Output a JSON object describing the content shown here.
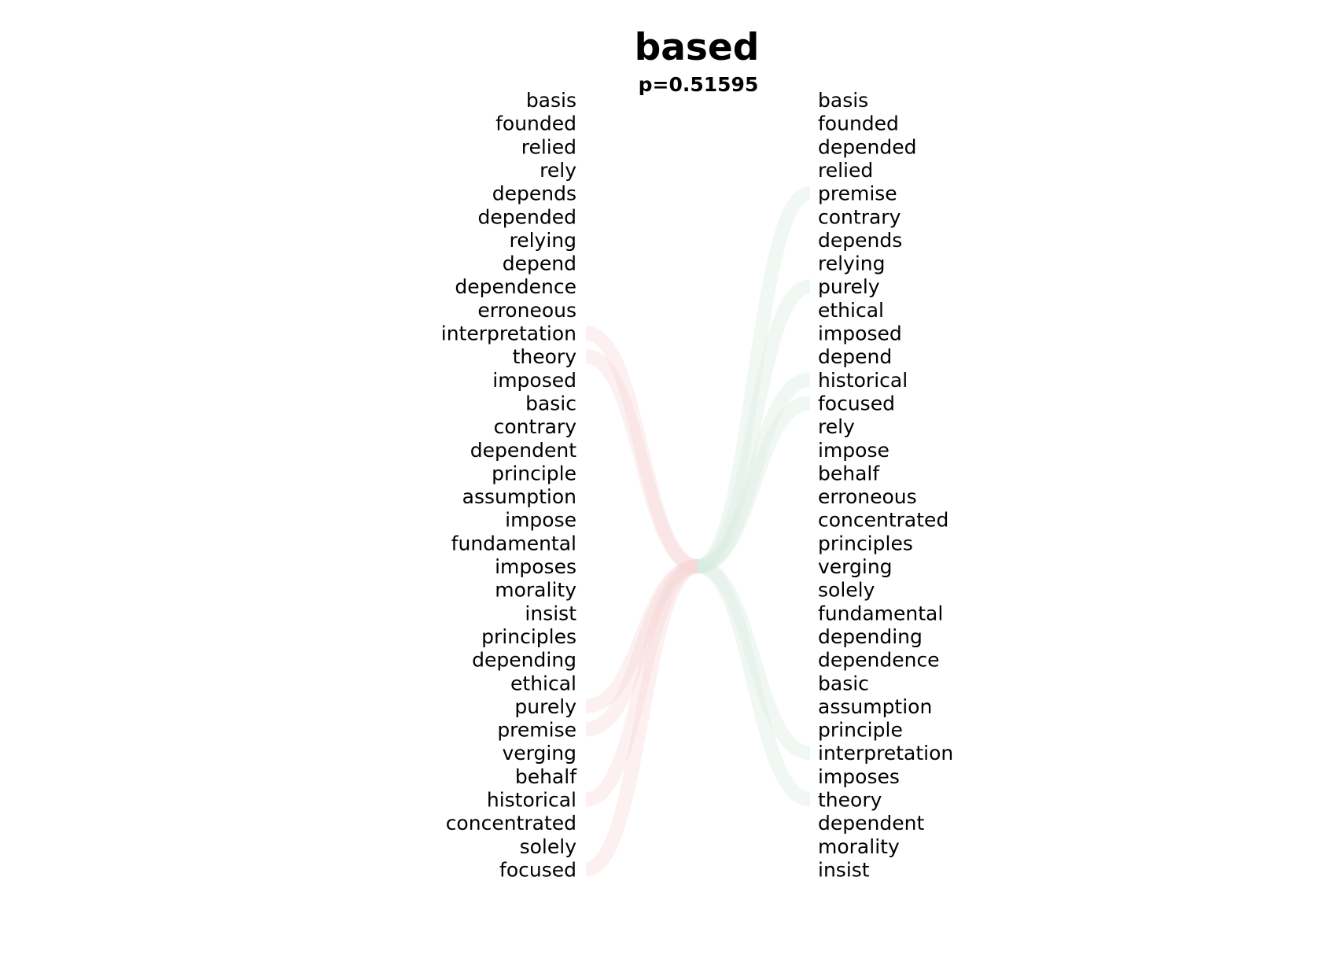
{
  "title": "based",
  "subtitle": "p=0.51595",
  "colors": {
    "left_link": "#f7d4d4",
    "right_link": "#d6ece0",
    "text": "#000000"
  },
  "left_words": [
    "basis",
    "founded",
    "relied",
    "rely",
    "depends",
    "depended",
    "relying",
    "depend",
    "dependence",
    "erroneous",
    "interpretation",
    "theory",
    "imposed",
    "basic",
    "contrary",
    "dependent",
    "principle",
    "assumption",
    "impose",
    "fundamental",
    "imposes",
    "morality",
    "insist",
    "principles",
    "depending",
    "ethical",
    "purely",
    "premise",
    "verging",
    "behalf",
    "historical",
    "concentrated",
    "solely",
    "focused"
  ],
  "right_words": [
    "basis",
    "founded",
    "depended",
    "relied",
    "premise",
    "contrary",
    "depends",
    "relying",
    "purely",
    "ethical",
    "imposed",
    "depend",
    "historical",
    "focused",
    "rely",
    "impose",
    "behalf",
    "erroneous",
    "concentrated",
    "principles",
    "verging",
    "solely",
    "fundamental",
    "depending",
    "dependence",
    "basic",
    "assumption",
    "principle",
    "interpretation",
    "imposes",
    "theory",
    "dependent",
    "morality",
    "insist"
  ],
  "left_links": [
    {
      "from": "interpretation",
      "to_row": 20
    },
    {
      "from": "theory",
      "to_row": 20
    },
    {
      "from": "purely",
      "to_row": 20
    },
    {
      "from": "premise",
      "to_row": 20
    },
    {
      "from": "historical",
      "to_row": 20
    },
    {
      "from": "focused",
      "to_row": 20
    }
  ],
  "right_links": [
    {
      "from": "premise",
      "to_row": 20
    },
    {
      "from": "purely",
      "to_row": 20
    },
    {
      "from": "historical",
      "to_row": 20
    },
    {
      "from": "focused",
      "to_row": 20
    },
    {
      "from": "interpretation",
      "to_row": 20
    },
    {
      "from": "theory",
      "to_row": 20
    }
  ]
}
